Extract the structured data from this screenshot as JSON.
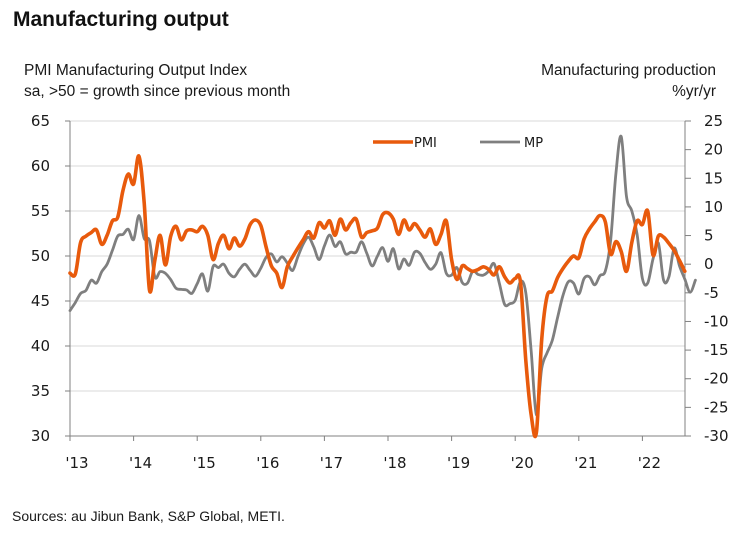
{
  "chart_data": {
    "type": "line",
    "title": "Manufacturing output",
    "left_axis": {
      "label_line1": "PMI Manufacturing Output Index",
      "label_line2": "sa, >50 = growth since previous month",
      "ylim": [
        30,
        65
      ],
      "ticks": [
        65,
        60,
        55,
        50,
        45,
        40,
        35,
        30
      ]
    },
    "right_axis": {
      "label_line1": "Manufacturing production",
      "label_line2": "%yr/yr",
      "ylim": [
        -30,
        25
      ],
      "ticks": [
        25,
        20,
        15,
        10,
        5,
        0,
        -5,
        -10,
        -15,
        -20,
        -25,
        -30
      ]
    },
    "x_axis": {
      "start": "2013-01",
      "tick_labels": [
        "'13",
        "'14",
        "'15",
        "'16",
        "'17",
        "'18",
        "'19",
        "'20",
        "'21",
        "'22"
      ]
    },
    "grid": true,
    "legend": {
      "placement": "top-center",
      "entries": [
        "PMI",
        "MP"
      ]
    },
    "series": [
      {
        "name": "PMI",
        "axis": "left",
        "color": "#e85a0c",
        "values": [
          48.1,
          48.0,
          51.5,
          52.2,
          52.6,
          52.9,
          51.3,
          52.3,
          53.9,
          54.3,
          57.3,
          59.1,
          58.0,
          61.1,
          55.9,
          46.2,
          49.5,
          52.3,
          49.0,
          52.2,
          53.3,
          51.8,
          52.8,
          52.9,
          52.7,
          53.3,
          52.3,
          49.6,
          51.4,
          52.3,
          50.8,
          52.0,
          51.1,
          51.9,
          53.5,
          54.0,
          53.4,
          51.0,
          48.9,
          48.1,
          46.5,
          48.8,
          49.9,
          50.9,
          51.8,
          52.7,
          52.0,
          53.7,
          53.1,
          53.9,
          52.3,
          54.1,
          52.9,
          53.7,
          54.1,
          52.1,
          52.6,
          52.8,
          53.1,
          54.6,
          54.8,
          54.1,
          52.4,
          54.0,
          52.9,
          53.6,
          52.9,
          52.1,
          53.0,
          51.3,
          52.4,
          53.9,
          49.6,
          47.4,
          48.9,
          48.6,
          48.3,
          48.5,
          48.8,
          48.5,
          47.9,
          48.8,
          47.7,
          47.0,
          47.5,
          47.1,
          38.4,
          32.4,
          30.4,
          40.7,
          45.5,
          46.1,
          47.6,
          48.6,
          49.4,
          50.0,
          49.8,
          51.9,
          53.0,
          53.8,
          54.5,
          53.8,
          50.2,
          51.6,
          50.5,
          48.3,
          51.5,
          53.9,
          53.5,
          55.0,
          50.1,
          52.2,
          52.1,
          51.4,
          50.6,
          49.5,
          48.3
        ]
      },
      {
        "name": "MP",
        "axis": "right",
        "color": "#7f7f7f",
        "values": [
          -8.1,
          -6.7,
          -5.1,
          -4.6,
          -2.8,
          -3.3,
          -1.3,
          0.0,
          2.4,
          4.9,
          5.2,
          6.1,
          4.3,
          8.5,
          4.5,
          4.1,
          -2.2,
          -1.3,
          -1.6,
          -2.7,
          -4.2,
          -4.4,
          -4.5,
          -5.1,
          -3.4,
          -1.7,
          -4.7,
          -0.4,
          -0.6,
          0.0,
          -1.6,
          -2.2,
          -0.9,
          0.0,
          -1.1,
          -2.1,
          -0.7,
          1.2,
          1.8,
          0.4,
          1.3,
          0.2,
          -1.1,
          1.3,
          3.5,
          4.7,
          3.0,
          0.8,
          3.2,
          5.1,
          3.1,
          3.9,
          1.8,
          2.1,
          2.1,
          3.9,
          1.9,
          -0.3,
          1.4,
          2.9,
          0.5,
          2.7,
          -0.8,
          0.9,
          -0.2,
          2.1,
          1.9,
          0.3,
          -0.9,
          0.0,
          2.0,
          -1.6,
          -1.9,
          -0.6,
          -3.2,
          -3.3,
          -1.2,
          -1.8,
          -1.9,
          -1.2,
          0.1,
          -3.3,
          -7.0,
          -6.9,
          -6.3,
          -3.0,
          -5.0,
          -15.0,
          -26.3,
          -18.2,
          -15.5,
          -13.3,
          -9.3,
          -5.5,
          -3.1,
          -3.3,
          -5.2,
          -2.5,
          -2.2,
          -3.6,
          -2.0,
          -1.2,
          4.1,
          15.8,
          22.3,
          11.8,
          9.3,
          5.2,
          -2.5,
          -3.3,
          0.9,
          3.7,
          -2.8,
          -2.2,
          2.8,
          -0.3,
          -2.6,
          -4.9,
          -2.8
        ]
      }
    ]
  },
  "header": {
    "title": "Manufacturing output"
  },
  "footer": {
    "source": "Sources: au Jibun Bank, S&P Global, METI."
  }
}
